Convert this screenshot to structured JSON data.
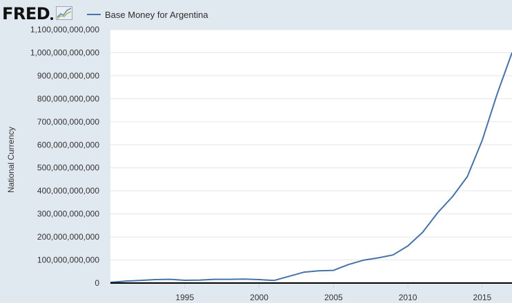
{
  "header": {
    "logo_text": "FRED",
    "legend_label": "Base Money for Argentina"
  },
  "colors": {
    "background": "#e1e9f0",
    "plot_background": "#ffffff",
    "series": "#4572a7",
    "grid": "#e6e6e6",
    "axis": "#000000"
  },
  "icons": [
    "fred-chart-icon"
  ],
  "chart_data": {
    "type": "line",
    "title": "",
    "xlabel": "",
    "ylabel": "National Currency",
    "xlim": [
      1990,
      2017
    ],
    "ylim": [
      0,
      1100000000000
    ],
    "x_ticks": [
      1995,
      2000,
      2005,
      2010,
      2015
    ],
    "y_ticks": [
      {
        "value": 0,
        "label": "0"
      },
      {
        "value": 100000000000,
        "label": "100,000,000,000"
      },
      {
        "value": 200000000000,
        "label": "200,000,000,000"
      },
      {
        "value": 300000000000,
        "label": "300,000,000,000"
      },
      {
        "value": 400000000000,
        "label": "400,000,000,000"
      },
      {
        "value": 500000000000,
        "label": "500,000,000,000"
      },
      {
        "value": 600000000000,
        "label": "600,000,000,000"
      },
      {
        "value": 700000000000,
        "label": "700,000,000,000"
      },
      {
        "value": 800000000000,
        "label": "800,000,000,000"
      },
      {
        "value": 900000000000,
        "label": "900,000,000,000"
      },
      {
        "value": 1000000000000,
        "label": "1,000,000,000,000"
      },
      {
        "value": 1100000000000,
        "label": "1,100,000,000,000"
      }
    ],
    "grid": true,
    "series": [
      {
        "name": "Base Money for Argentina",
        "x": [
          1990,
          1991,
          1992,
          1993,
          1994,
          1995,
          1996,
          1997,
          1998,
          1999,
          2000,
          2001,
          2002,
          2003,
          2004,
          2005,
          2006,
          2007,
          2008,
          2009,
          2010,
          2011,
          2012,
          2013,
          2014,
          2015,
          2016,
          2017
        ],
        "values": [
          3000000000,
          8000000000,
          11000000000,
          15000000000,
          16000000000,
          12000000000,
          13000000000,
          16000000000,
          16000000000,
          17000000000,
          15000000000,
          11000000000,
          29000000000,
          47000000000,
          53000000000,
          55000000000,
          80000000000,
          99000000000,
          109000000000,
          122000000000,
          161000000000,
          221000000000,
          305000000000,
          375000000000,
          462000000000,
          620000000000,
          820000000000,
          1000000000000
        ]
      }
    ]
  }
}
